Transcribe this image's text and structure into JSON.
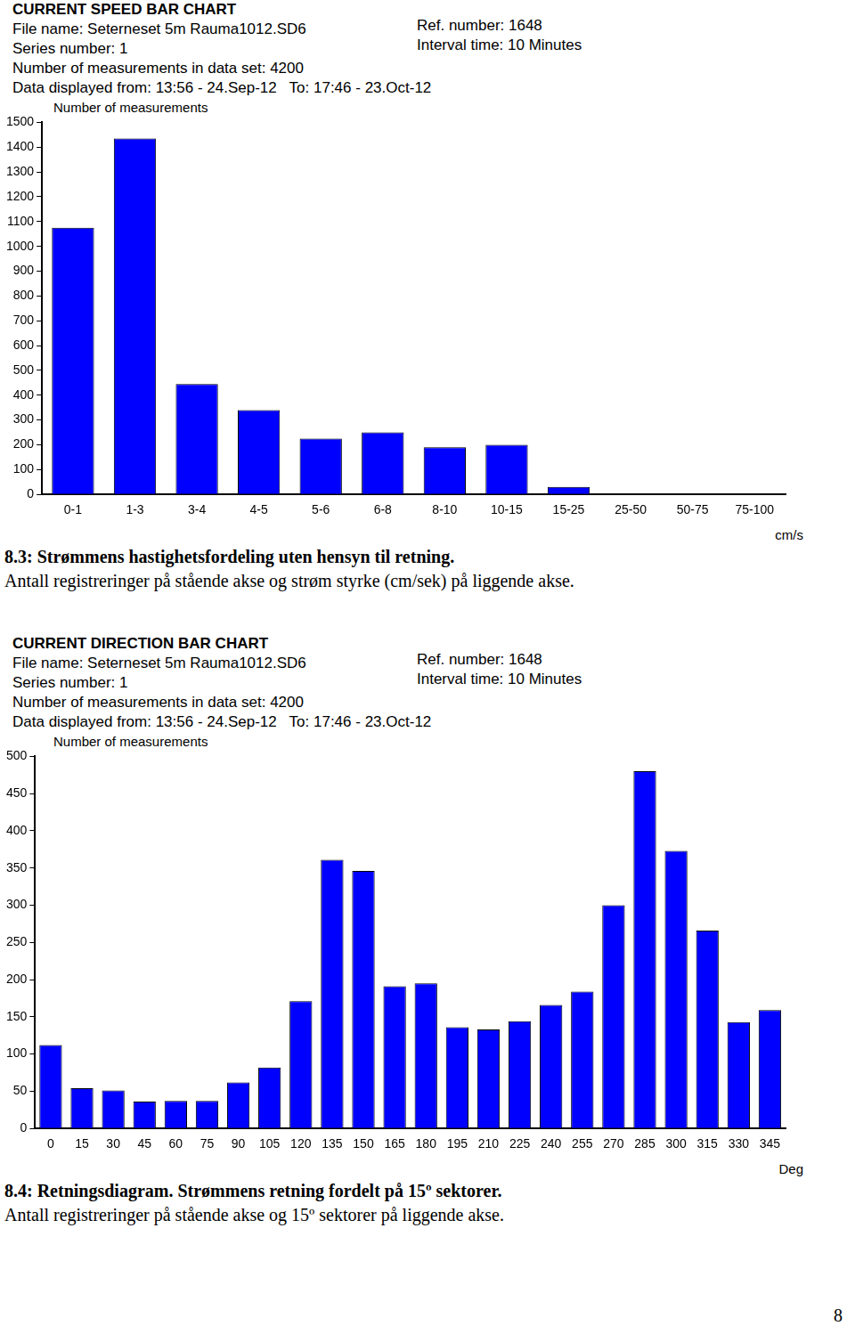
{
  "page_number": "8",
  "chart_data": [
    {
      "type": "bar",
      "title": "CURRENT SPEED BAR CHART",
      "header_left": [
        "File name: Seterneset 5m Rauma1012.SD6",
        "Series number: 1",
        "Number of measurements in data set: 4200",
        "Data displayed from: 13:56 - 24.Sep-12   To: 17:46 - 23.Oct-12"
      ],
      "header_right": [
        "Ref. number: 1648",
        "Interval time: 10 Minutes"
      ],
      "y_label": "Number of measurements",
      "x_label": "cm/s",
      "caption": [
        "8.3: Strømmens hastighetsfordeling uten hensyn til retning.",
        "Antall registreringer på stående akse og strøm styrke (cm/sek) på liggende akse."
      ],
      "categories": [
        "0-1",
        "1-3",
        "3-4",
        "4-5",
        "5-6",
        "6-8",
        "8-10",
        "10-15",
        "15-25",
        "25-50",
        "50-75",
        "75-100"
      ],
      "values": [
        1075,
        1435,
        445,
        340,
        225,
        250,
        190,
        200,
        30,
        0,
        0,
        0
      ],
      "color": "#0000ff",
      "ylim": [
        0,
        1500
      ],
      "yticks": [
        0,
        100,
        200,
        300,
        400,
        500,
        600,
        700,
        800,
        900,
        1000,
        1100,
        1200,
        1300,
        1400,
        1500
      ],
      "grid": false
    },
    {
      "type": "bar",
      "title": "CURRENT DIRECTION BAR CHART",
      "header_left": [
        "File name: Seterneset 5m Rauma1012.SD6",
        "Series number: 1",
        "Number of measurements in data set: 4200",
        "Data displayed from: 13:56 - 24.Sep-12   To: 17:46 - 23.Oct-12"
      ],
      "header_right": [
        "Ref. number: 1648",
        "Interval time: 10 Minutes"
      ],
      "y_label": "Number of measurements",
      "x_label": "Deg",
      "caption": [
        "8.4: Retningsdiagram. Strømmens retning fordelt på 15º sektorer.",
        "Antall registreringer på stående akse og 15º sektorer på liggende akse."
      ],
      "categories": [
        "0",
        "15",
        "30",
        "45",
        "60",
        "75",
        "90",
        "105",
        "120",
        "135",
        "150",
        "165",
        "180",
        "195",
        "210",
        "225",
        "240",
        "255",
        "270",
        "285",
        "300",
        "315",
        "330",
        "345"
      ],
      "values": [
        112,
        54,
        51,
        36,
        37,
        37,
        62,
        82,
        171,
        361,
        346,
        191,
        195,
        136,
        133,
        144,
        166,
        184,
        300,
        480,
        373,
        266,
        143,
        159
      ],
      "color": "#0000ff",
      "ylim": [
        0,
        500
      ],
      "yticks": [
        0,
        50,
        100,
        150,
        200,
        250,
        300,
        350,
        400,
        450,
        500
      ],
      "grid": false
    }
  ]
}
